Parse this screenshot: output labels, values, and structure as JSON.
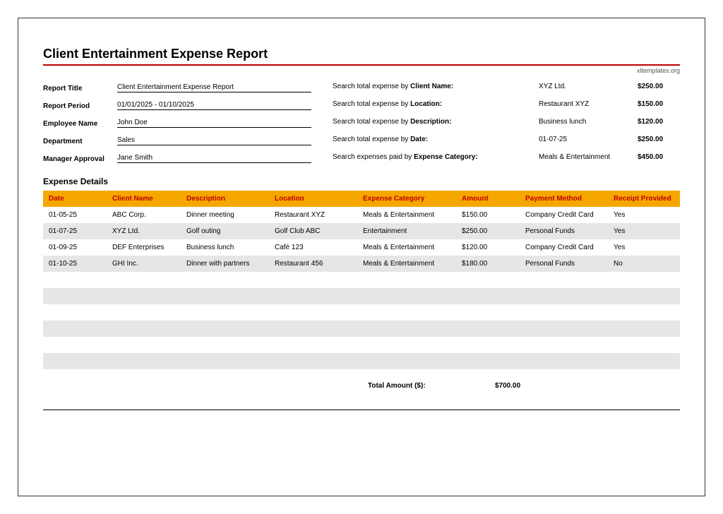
{
  "title": "Client Entertainment Expense Report",
  "attribution": "xltemplates.org",
  "meta": [
    {
      "label": "Report Title",
      "value": "Client Entertainment Expense Report"
    },
    {
      "label": "Report Period",
      "value": "01/01/2025 - 01/10/2025"
    },
    {
      "label": "Employee Name",
      "value": "John Doe"
    },
    {
      "label": "Department",
      "value": "Sales"
    },
    {
      "label": "Manager Approval",
      "value": "Jane Smith"
    }
  ],
  "searches": [
    {
      "prefix": "Search total expense by ",
      "bold": "Client Name:",
      "value": "XYZ Ltd.",
      "amount": "$250.00"
    },
    {
      "prefix": "Search total expense by ",
      "bold": "Location:",
      "value": "Restaurant XYZ",
      "amount": "$150.00"
    },
    {
      "prefix": "Search total expense by ",
      "bold": "Description:",
      "value": "Business lunch",
      "amount": "$120.00"
    },
    {
      "prefix": "Search total expense by ",
      "bold": "Date:",
      "value": "01-07-25",
      "amount": "$250.00"
    },
    {
      "prefix": "Search expenses paid by ",
      "bold": "Expense Category:",
      "value": "Meals & Entertainment",
      "amount": "$450.00"
    }
  ],
  "section": "Expense Details",
  "columns": [
    "Date",
    "Client Name",
    "Description",
    "Location",
    "Expense Category",
    "Amount",
    "Payment Method",
    "Receipt Provided"
  ],
  "col_widths": [
    "90px",
    "105px",
    "125px",
    "125px",
    "140px",
    "90px",
    "125px",
    "auto"
  ],
  "rows": [
    [
      "01-05-25",
      "ABC Corp.",
      "Dinner meeting",
      "Restaurant XYZ",
      "Meals & Entertainment",
      "$150.00",
      "Company Credit Card",
      "Yes"
    ],
    [
      "01-07-25",
      "XYZ Ltd.",
      "Golf outing",
      "Golf Club ABC",
      "Entertainment",
      "$250.00",
      "Personal Funds",
      "Yes"
    ],
    [
      "01-09-25",
      "DEF Enterprises",
      "Business lunch",
      "Café 123",
      "Meals & Entertainment",
      "$120.00",
      "Company Credit Card",
      "Yes"
    ],
    [
      "01-10-25",
      "GHI Inc.",
      "Dinner with partners",
      "Restaurant 456",
      "Meals & Entertainment",
      "$180.00",
      "Personal Funds",
      "No"
    ]
  ],
  "blank_rows": 6,
  "total_label": "Total Amount ($):",
  "total_value": "$700.00",
  "colors": {
    "header_bg": "#f5a700",
    "header_text": "#c00000",
    "rule": "#c00000",
    "row_alt": "#e6e6e6"
  }
}
